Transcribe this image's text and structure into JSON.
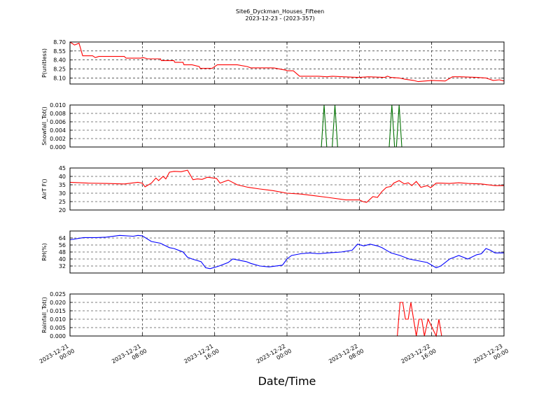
{
  "figure": {
    "title": "Site6_Dyckman_Houses_Fifteen",
    "subtitle": "2023-12-23 - (2023-357)",
    "xlabel": "Date/Time"
  },
  "chart_data": [
    {
      "type": "line",
      "ylabel": "P(unitless)",
      "ylim": [
        8.0,
        8.7
      ],
      "yticks": [
        "8.10",
        "8.25",
        "8.40",
        "8.55",
        "8.70"
      ],
      "ytick_values": [
        8.1,
        8.25,
        8.4,
        8.55,
        8.7
      ],
      "xlim": [
        0,
        48
      ],
      "grid": true,
      "color": "#ff0000",
      "series": [
        {
          "x": [
            0,
            0.5,
            1,
            1.4,
            2.5,
            2.8,
            3.2,
            6,
            6.2,
            7.8,
            8.1,
            8.6,
            10,
            10.1,
            11.5,
            11.6,
            12.5,
            12.6,
            13.5,
            14.3,
            14.4,
            15.7,
            16.3,
            18.5,
            19.6,
            20,
            22.5,
            23.9,
            24,
            24.7,
            25.4,
            27.5,
            28.4,
            29,
            30.2,
            32,
            33,
            34.8,
            35.1,
            35.5,
            36.4,
            37,
            38,
            38.5,
            39.3,
            40,
            41.5,
            42.3,
            42.5,
            43.2,
            45,
            46,
            46.8,
            47.5,
            48
          ],
          "y": [
            8.7,
            8.65,
            8.68,
            8.47,
            8.47,
            8.44,
            8.46,
            8.46,
            8.43,
            8.43,
            8.44,
            8.42,
            8.42,
            8.39,
            8.39,
            8.36,
            8.36,
            8.32,
            8.32,
            8.29,
            8.26,
            8.26,
            8.32,
            8.32,
            8.29,
            8.27,
            8.27,
            8.23,
            8.22,
            8.22,
            8.13,
            8.13,
            8.12,
            8.13,
            8.12,
            8.11,
            8.12,
            8.11,
            8.13,
            8.11,
            8.1,
            8.08,
            8.06,
            8.04,
            8.05,
            8.06,
            8.05,
            8.12,
            8.12,
            8.12,
            8.11,
            8.1,
            8.06,
            8.07,
            8.05
          ]
        }
      ]
    },
    {
      "type": "line",
      "ylabel": "Snowfall_Tot()",
      "ylim": [
        0.0,
        0.01
      ],
      "yticks": [
        "0.000",
        "0.002",
        "0.004",
        "0.006",
        "0.008",
        "0.010"
      ],
      "ytick_values": [
        0.0,
        0.002,
        0.004,
        0.006,
        0.008,
        0.01
      ],
      "xlim": [
        0,
        48
      ],
      "grid": true,
      "color": "#007000",
      "series": [
        {
          "x": [
            0,
            27.8,
            28.1,
            28.4,
            29,
            29.3,
            29.6,
            35.3,
            35.6,
            35.9,
            36.1,
            36.4,
            36.7,
            48
          ],
          "y": [
            0,
            0,
            0.01,
            0,
            0,
            0.01,
            0,
            0,
            0.01,
            0,
            0,
            0.01,
            0,
            0
          ]
        }
      ]
    },
    {
      "type": "line",
      "ylabel": "AirT F()",
      "ylim": [
        20,
        45
      ],
      "yticks": [
        "20",
        "25",
        "30",
        "35",
        "40",
        "45"
      ],
      "ytick_values": [
        20,
        25,
        30,
        35,
        40,
        45
      ],
      "xlim": [
        0,
        48
      ],
      "grid": true,
      "color": "#ff0000",
      "series": [
        {
          "x": [
            0,
            2,
            4,
            6,
            7.5,
            8,
            8.3,
            9,
            9.5,
            9.8,
            10.3,
            10.6,
            11,
            11.5,
            12.3,
            13,
            13.6,
            14.1,
            14.6,
            15.2,
            16.2,
            16.6,
            17.5,
            18.5,
            19.7,
            21,
            22.5,
            24,
            25.5,
            27,
            28.5,
            30.5,
            32,
            32.4,
            32.8,
            33.5,
            34,
            34.5,
            35,
            35.5,
            35.8,
            36.4,
            37,
            37.4,
            37.8,
            38.3,
            38.8,
            39.5,
            39.9,
            40.5,
            41,
            42,
            43,
            44,
            45.5,
            47,
            48
          ],
          "y": [
            36.5,
            36,
            35.8,
            35.5,
            36.5,
            36,
            33.8,
            36,
            39,
            37.5,
            40,
            38.5,
            42.5,
            43,
            42.8,
            43.7,
            38,
            38.5,
            38.2,
            39.5,
            38.8,
            36,
            37.8,
            35,
            33.5,
            32.5,
            31.5,
            30,
            29.5,
            28.5,
            27.5,
            26,
            26,
            25,
            24.5,
            28,
            27.5,
            31,
            33.5,
            34,
            36,
            37.5,
            35.5,
            36.2,
            34.5,
            37,
            33.5,
            34.5,
            33.3,
            36,
            36,
            35.8,
            36.2,
            35.8,
            35.5,
            34.5,
            34.5
          ]
        }
      ]
    },
    {
      "type": "line",
      "ylabel": "RH(%)",
      "ylim": [
        24,
        72
      ],
      "yticks": [
        "32",
        "40",
        "48",
        "56",
        "64"
      ],
      "ytick_values": [
        32,
        40,
        48,
        56,
        64
      ],
      "xlim": [
        0,
        48
      ],
      "grid": true,
      "color": "#0000ff",
      "series": [
        {
          "x": [
            0,
            1.5,
            3,
            4,
            5.5,
            7,
            7.5,
            8,
            9,
            10,
            11,
            11.5,
            12.5,
            13,
            13.5,
            14.5,
            15,
            15.5,
            16.5,
            17.5,
            18,
            19.5,
            20,
            21,
            22,
            23.5,
            24,
            24.5,
            25.5,
            26.5,
            27.5,
            28.5,
            30,
            31.2,
            31.8,
            32.5,
            33.2,
            34,
            34.5,
            35.5,
            36.5,
            37.5,
            38.5,
            39.5,
            40.5,
            41,
            42,
            43,
            44,
            45,
            45.5,
            46,
            46.5,
            47,
            48
          ],
          "y": [
            62,
            64.5,
            64.5,
            65,
            67,
            66,
            67,
            66.5,
            60,
            58,
            53,
            52,
            48,
            42,
            40,
            37,
            30,
            29,
            32,
            36,
            40,
            37,
            35,
            32,
            31,
            33,
            40,
            44,
            46,
            47,
            46,
            47,
            48,
            50,
            57,
            55,
            57,
            55,
            53,
            47,
            44,
            40,
            38,
            36,
            30,
            32,
            40,
            44,
            40,
            45,
            46,
            52,
            50,
            47,
            47
          ]
        }
      ]
    },
    {
      "type": "line",
      "ylabel": "Rainfall_Tot()",
      "ylim": [
        0.0,
        0.025
      ],
      "yticks": [
        "0.000",
        "0.005",
        "0.010",
        "0.015",
        "0.020",
        "0.025"
      ],
      "ytick_values": [
        0.0,
        0.005,
        0.01,
        0.015,
        0.02,
        0.025
      ],
      "xlim": [
        0,
        48
      ],
      "grid": true,
      "color": "#ff0000",
      "series": [
        {
          "x": [
            0,
            36.2,
            36.5,
            36.8,
            37.1,
            37.4,
            37.7,
            38,
            38.3,
            38.6,
            38.9,
            39.2,
            39.6,
            40.5,
            40.8,
            41.1,
            48
          ],
          "y": [
            0,
            0,
            0.02,
            0.02,
            0.01,
            0.01,
            0.02,
            0.01,
            0,
            0.01,
            0.01,
            0,
            0.01,
            0,
            0.01,
            0,
            0
          ]
        }
      ]
    }
  ],
  "xticks": [
    {
      "line1": "2023-12-21",
      "line2": "00:00",
      "value": 0
    },
    {
      "line1": "2023-12-21",
      "line2": "08:00",
      "value": 8
    },
    {
      "line1": "2023-12-21",
      "line2": "16:00",
      "value": 16
    },
    {
      "line1": "2023-12-22",
      "line2": "00:00",
      "value": 24
    },
    {
      "line1": "2023-12-22",
      "line2": "08:00",
      "value": 32
    },
    {
      "line1": "2023-12-22",
      "line2": "16:00",
      "value": 40
    },
    {
      "line1": "2023-12-23",
      "line2": "00:00",
      "value": 48
    }
  ]
}
